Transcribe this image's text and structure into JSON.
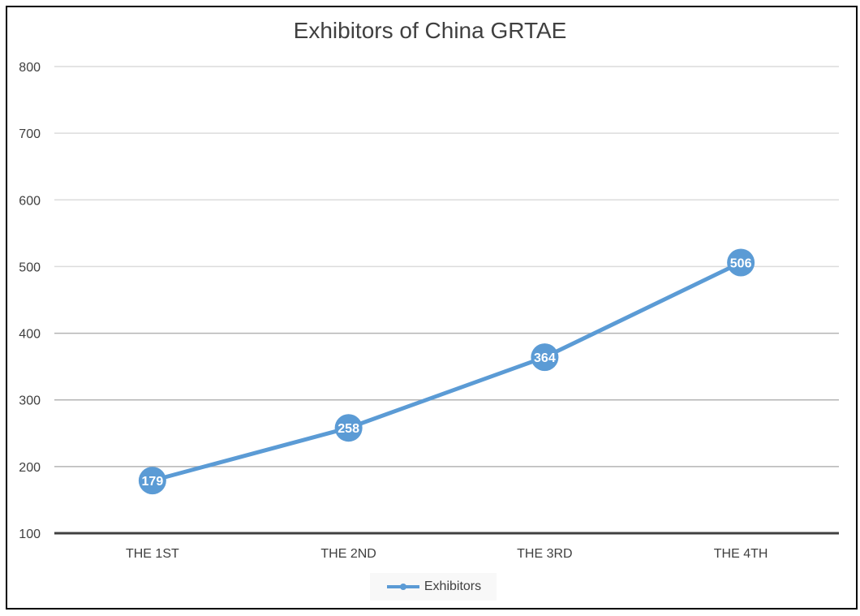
{
  "chart_data": {
    "type": "line",
    "title": "Exhibitors of China GRTAE",
    "categories": [
      "THE 1ST",
      "THE 2ND",
      "THE 3RD",
      "THE 4TH"
    ],
    "series": [
      {
        "name": "Exhibitors",
        "values": [
          179,
          258,
          364,
          506
        ],
        "color": "#5B9BD5"
      }
    ],
    "ylim": [
      100,
      800
    ],
    "yticks": [
      100,
      200,
      300,
      400,
      500,
      600,
      700,
      800
    ],
    "grid": true,
    "legend": "bottom",
    "data_labels": true
  }
}
